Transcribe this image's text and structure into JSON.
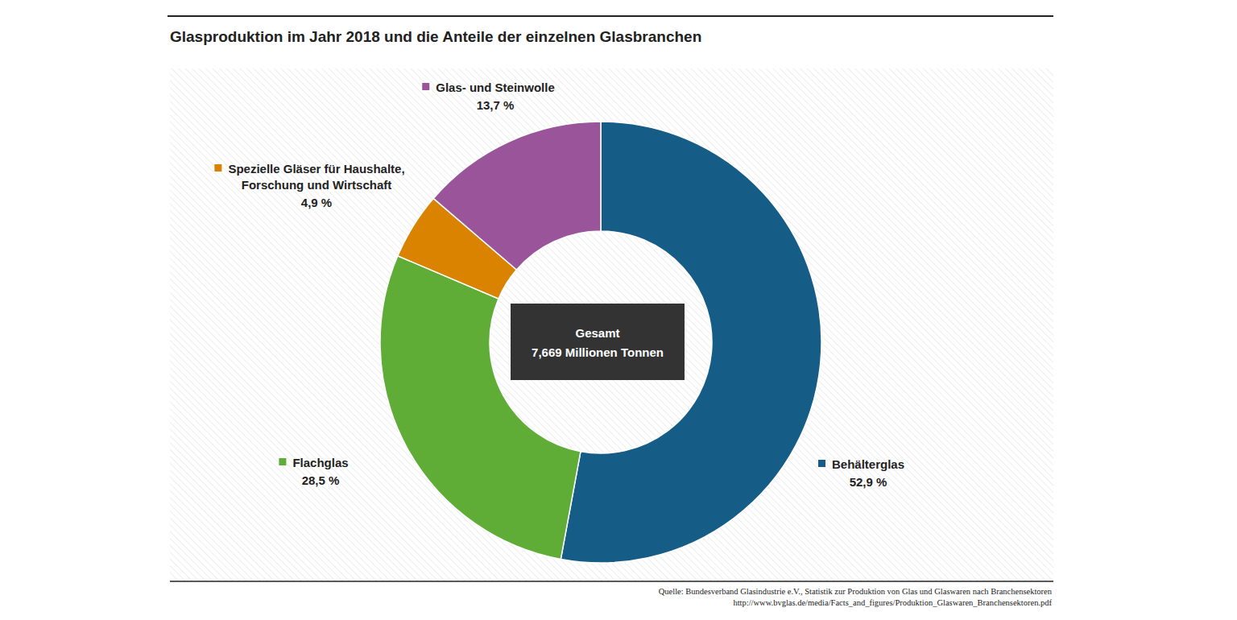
{
  "chart_data": {
    "type": "donut",
    "title": "Glasproduktion im Jahr 2018 und die Anteile der einzelnen Glasbranchen",
    "categories": [
      "Behälterglas",
      "Flachglas",
      "Spezielle Gläser für Haushalte, Forschung und Wirtschaft",
      "Glas- und Steinwolle"
    ],
    "values": [
      52.9,
      28.5,
      4.9,
      13.7
    ],
    "value_labels": [
      "52,9 %",
      "28,5 %",
      "4,9 %",
      "13,7 %"
    ],
    "colors": [
      "#155d87",
      "#5fad37",
      "#d98300",
      "#9a549a"
    ],
    "data_labels": true,
    "annotations": [
      "Gesamt",
      "7,669 Millionen Tonnen"
    ],
    "source": [
      "Quelle: Bundesverband Glasindustrie e.V., Statistik zur Produktion von Glas und Glaswaren nach Branchensektoren",
      "http://www.bvglas.de/media/Facts_and_figures/Produktion_Glaswaren_Branchensektoren.pdf"
    ]
  }
}
